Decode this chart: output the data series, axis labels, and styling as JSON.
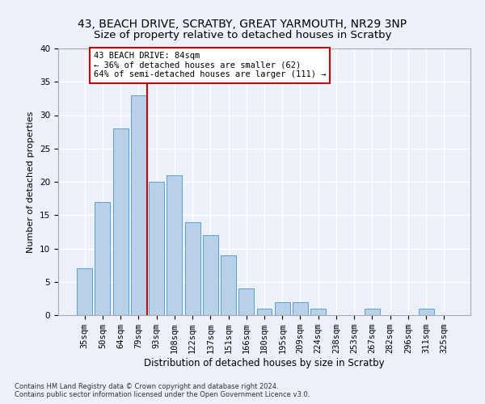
{
  "title1": "43, BEACH DRIVE, SCRATBY, GREAT YARMOUTH, NR29 3NP",
  "title2": "Size of property relative to detached houses in Scratby",
  "xlabel": "Distribution of detached houses by size in Scratby",
  "ylabel": "Number of detached properties",
  "categories": [
    "35sqm",
    "50sqm",
    "64sqm",
    "79sqm",
    "93sqm",
    "108sqm",
    "122sqm",
    "137sqm",
    "151sqm",
    "166sqm",
    "180sqm",
    "195sqm",
    "209sqm",
    "224sqm",
    "238sqm",
    "253sqm",
    "267sqm",
    "282sqm",
    "296sqm",
    "311sqm",
    "325sqm"
  ],
  "values": [
    7,
    17,
    28,
    33,
    20,
    21,
    14,
    12,
    9,
    4,
    1,
    2,
    2,
    1,
    0,
    0,
    1,
    0,
    0,
    1,
    0
  ],
  "bar_color": "#b8d0e8",
  "bar_edgecolor": "#5a9fd4",
  "property_line_x": 3.5,
  "annotation_text": "43 BEACH DRIVE: 84sqm\n← 36% of detached houses are smaller (62)\n64% of semi-detached houses are larger (111) →",
  "annotation_box_color": "#ffffff",
  "annotation_border_color": "#cc0000",
  "vline_color": "#cc0000",
  "footer1": "Contains HM Land Registry data © Crown copyright and database right 2024.",
  "footer2": "Contains public sector information licensed under the Open Government Licence v3.0.",
  "ylim": [
    0,
    40
  ],
  "yticks": [
    0,
    5,
    10,
    15,
    20,
    25,
    30,
    35,
    40
  ],
  "background_color": "#ecf0f8",
  "grid_color": "#ffffff",
  "title1_fontsize": 10,
  "title2_fontsize": 9.5,
  "xlabel_fontsize": 8.5,
  "ylabel_fontsize": 8,
  "tick_fontsize": 7.5,
  "annotation_fontsize": 7.5,
  "footer_fontsize": 6
}
